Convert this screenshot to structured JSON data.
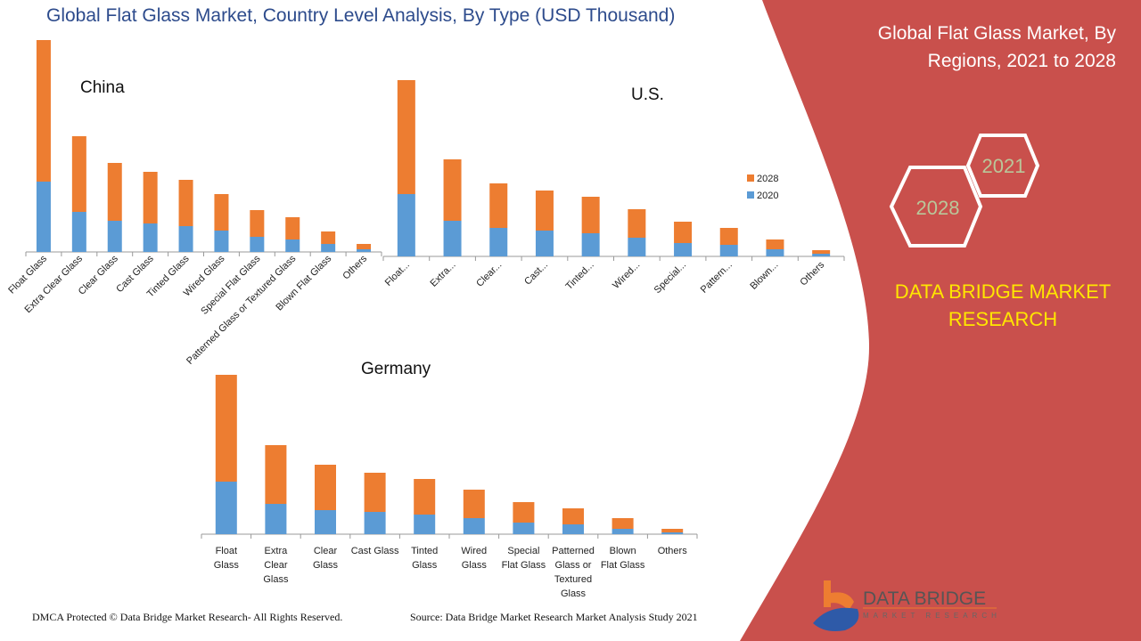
{
  "header": {
    "title": "Global Flat Glass Market, Country Level Analysis, By Type (USD Thousand)"
  },
  "side_panel": {
    "title": "Global Flat Glass Market, By Regions, 2021 to 2028",
    "hex_year_a": "2021",
    "hex_year_b": "2028",
    "brand_text": "DATA BRIDGE MARKET RESEARCH",
    "logo_text": "DATA BRIDGE",
    "logo_subtext": "MARKET RESEARCH",
    "panel_color": "#c9504c",
    "brand_color": "#ffe600"
  },
  "footer": {
    "left": "DMCA Protected © Data Bridge Market Research- All Rights Reserved.",
    "right": "Source: Data Bridge Market Research Market Analysis Study 2021"
  },
  "colors": {
    "2020": "#5b9bd5",
    "2028": "#ed7d31"
  },
  "chart_data": [
    {
      "type": "bar",
      "stacked": true,
      "title": "China",
      "categories": [
        "Float Glass",
        "Extra Clear Glass",
        "Clear Glass",
        "Cast Glass",
        "Tinted Glass",
        "Wired Glass",
        "Special Flat Glass",
        "Patterned Glass or Textured Glass",
        "Blown Flat Glass",
        "Others"
      ],
      "series": [
        {
          "name": "2020",
          "values": [
            79,
            45,
            35,
            32,
            29,
            24,
            17,
            14,
            9,
            3
          ]
        },
        {
          "name": "2028",
          "values": [
            159,
            85,
            65,
            58,
            52,
            41,
            30,
            25,
            14,
            6
          ]
        }
      ],
      "y_axis": "none (relative values)",
      "grid": false
    },
    {
      "type": "bar",
      "stacked": true,
      "title": "U.S.",
      "categories": [
        "Float...",
        "Extra...",
        "Clear...",
        "Cast...",
        "Tinted...",
        "Wired...",
        "Special...",
        "Pattern...",
        "Blown...",
        "Others"
      ],
      "series": [
        {
          "name": "2020",
          "values": [
            70,
            40,
            32,
            29,
            26,
            21,
            15,
            13,
            8,
            3
          ]
        },
        {
          "name": "2028",
          "values": [
            128,
            69,
            50,
            45,
            41,
            32,
            24,
            19,
            11,
            4
          ]
        }
      ],
      "legend": {
        "position": "right",
        "entries": [
          "2028",
          "2020"
        ]
      },
      "y_axis": "none (relative values)",
      "grid": false
    },
    {
      "type": "bar",
      "stacked": true,
      "title": "Germany",
      "categories": [
        "Float Glass",
        "Extra Clear Glass",
        "Clear Glass",
        "Cast Glass",
        "Tinted Glass",
        "Wired Glass",
        "Special Flat Glass",
        "Patterned Glass or Textured Glass",
        "Blown Flat Glass",
        "Others"
      ],
      "series": [
        {
          "name": "2020",
          "values": [
            59,
            34,
            27,
            25,
            22,
            18,
            13,
            11,
            6,
            2
          ]
        },
        {
          "name": "2028",
          "values": [
            120,
            66,
            51,
            44,
            40,
            32,
            23,
            18,
            12,
            4
          ]
        }
      ],
      "y_axis": "none (relative values)",
      "grid": false
    }
  ]
}
